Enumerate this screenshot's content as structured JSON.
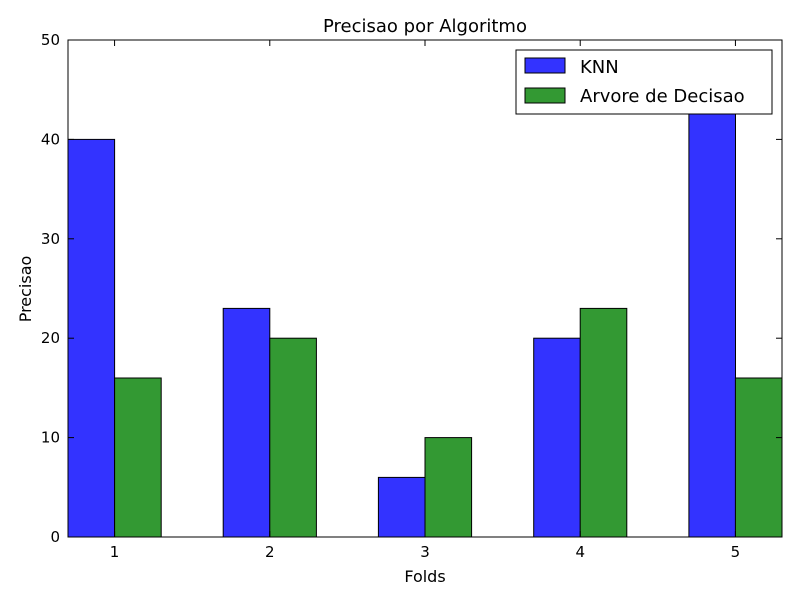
{
  "chart_data": {
    "type": "bar",
    "title": "Precisao por Algoritmo",
    "xlabel": "Folds",
    "ylabel": "Precisao",
    "categories": [
      "1",
      "2",
      "3",
      "4",
      "5"
    ],
    "ylim": [
      0,
      50
    ],
    "yticks": [
      "0",
      "10",
      "20",
      "30",
      "40",
      "50"
    ],
    "grid": false,
    "legend_position": "top-right",
    "series": [
      {
        "name": "KNN",
        "color": "#3333ff",
        "values": [
          40,
          23,
          6,
          20,
          43
        ]
      },
      {
        "name": "Arvore de Decisao",
        "color": "#339933",
        "values": [
          16,
          20,
          10,
          23,
          16
        ]
      }
    ]
  }
}
